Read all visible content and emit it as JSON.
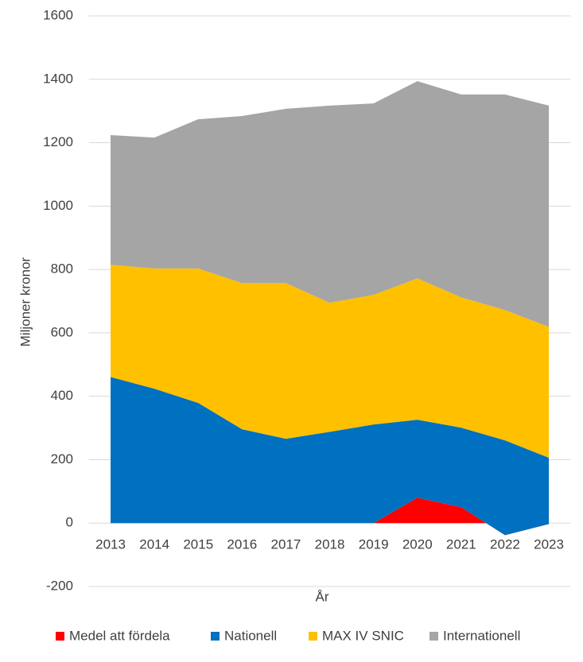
{
  "chart_data": {
    "type": "stacked_area",
    "categories": [
      "2013",
      "2014",
      "2015",
      "2016",
      "2017",
      "2018",
      "2019",
      "2020",
      "2021",
      "2022",
      "2023"
    ],
    "x_label": "År",
    "y_label": "Miljoner kronor",
    "ylim": [
      -200,
      1600
    ],
    "yticks": [
      -200,
      0,
      200,
      400,
      600,
      800,
      1000,
      1200,
      1400,
      1600
    ],
    "grid": true,
    "legend": "bottom",
    "series": [
      {
        "name": "Medel att fördela",
        "color": "#ff0000",
        "values": [
          0,
          0,
          0,
          0,
          0,
          0,
          0,
          80,
          50,
          -38,
          -3
        ]
      },
      {
        "name": "Nationell",
        "color": "#0070c0",
        "values": [
          461,
          424,
          379,
          296,
          266,
          288,
          311,
          246,
          251,
          299,
          209
        ]
      },
      {
        "name": "MAX IV SNIC",
        "color": "#ffc000",
        "values": [
          354,
          379,
          424,
          461,
          491,
          407,
          409,
          446,
          411,
          411,
          413
        ]
      },
      {
        "name": "Internationell",
        "color": "#a5a5a5",
        "values": [
          409,
          413,
          471,
          527,
          550,
          622,
          604,
          622,
          640,
          680,
          698
        ]
      }
    ]
  }
}
